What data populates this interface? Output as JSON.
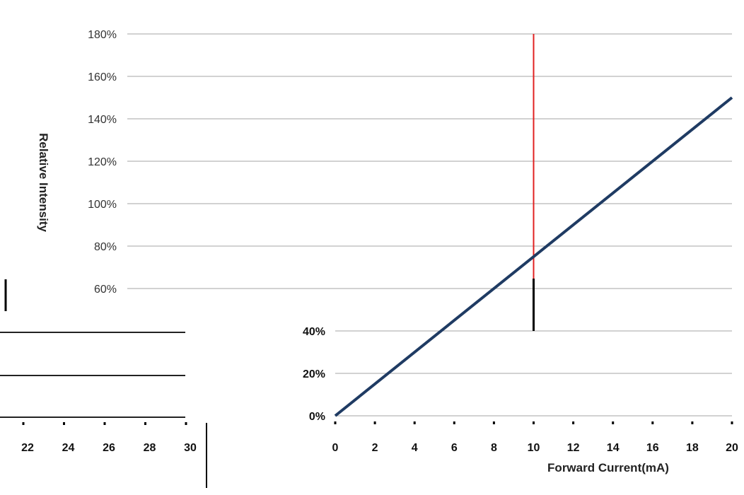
{
  "chart_data": [
    {
      "type": "line",
      "title": "",
      "xlabel": "Forward Current(mA)",
      "ylabel": "Relative Intensity",
      "xlim": [
        0,
        20
      ],
      "ylim": [
        0,
        180
      ],
      "x_ticks": [
        "0",
        "2",
        "4",
        "6",
        "8",
        "10",
        "12",
        "14",
        "16",
        "18",
        "20"
      ],
      "y_ticks": [
        "0%",
        "20%",
        "40%",
        "60%",
        "80%",
        "100%",
        "120%",
        "140%",
        "160%",
        "180%"
      ],
      "grid": true,
      "legend": "none",
      "series": [
        {
          "color": "#1f3b63",
          "x": [
            0,
            20
          ],
          "y": [
            0,
            150
          ]
        }
      ],
      "reference_line": {
        "x": 10,
        "color": "#e02020"
      }
    },
    {
      "type": "line",
      "title": "",
      "xlabel": "",
      "ylabel": "",
      "x_ticks": [
        "22",
        "24",
        "26",
        "28",
        "30"
      ],
      "grid": true,
      "legend": "none",
      "series": []
    }
  ]
}
